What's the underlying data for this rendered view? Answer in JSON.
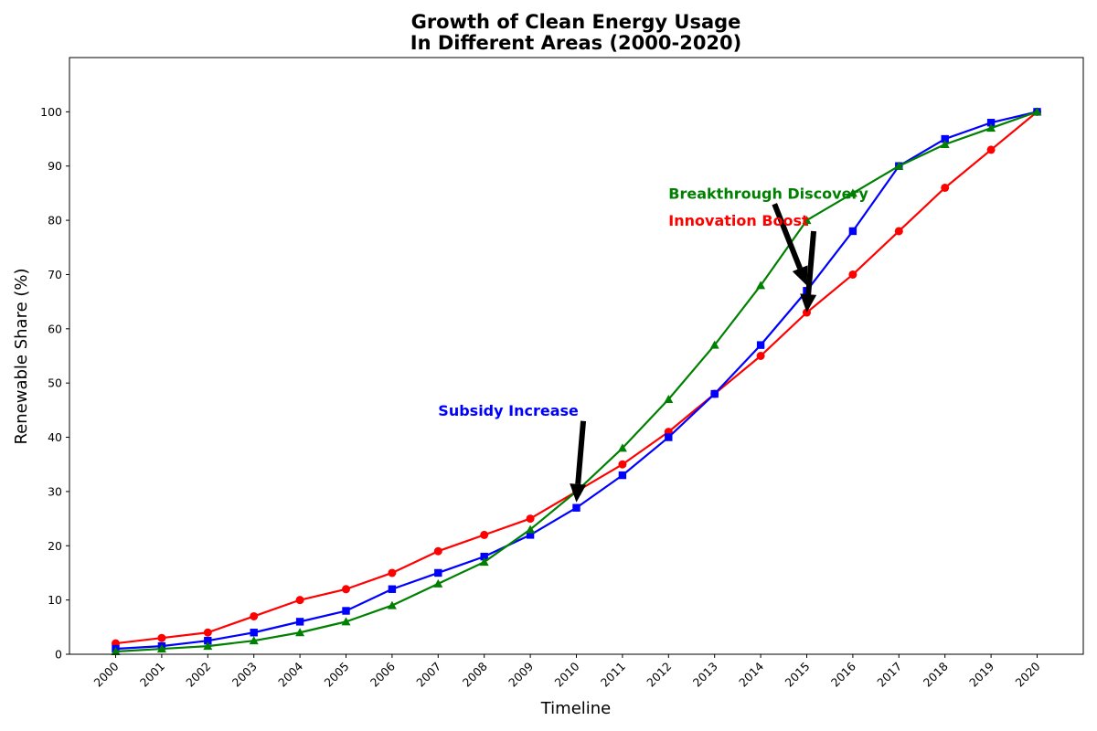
{
  "chart_data": {
    "type": "line",
    "title_lines": [
      "Growth of Clean Energy Usage",
      "In Different Areas (2000-2020)"
    ],
    "xlabel": "Timeline",
    "ylabel": "Renewable Share (%)",
    "categories": [
      "2000",
      "2001",
      "2002",
      "2003",
      "2004",
      "2005",
      "2006",
      "2007",
      "2008",
      "2009",
      "2010",
      "2011",
      "2012",
      "2013",
      "2014",
      "2015",
      "2016",
      "2017",
      "2018",
      "2019",
      "2020"
    ],
    "ylim": [
      0,
      110
    ],
    "yticks": [
      0,
      10,
      20,
      30,
      40,
      50,
      60,
      70,
      80,
      90,
      100
    ],
    "grid": false,
    "legend": "none",
    "series": [
      {
        "color": "#ff0000",
        "marker": "circle",
        "values": [
          2,
          3,
          4,
          7,
          10,
          12,
          15,
          19,
          22,
          25,
          30,
          35,
          41,
          48,
          55,
          63,
          70,
          78,
          86,
          93,
          100
        ]
      },
      {
        "color": "#0000ff",
        "marker": "square",
        "values": [
          1,
          1.5,
          2.5,
          4,
          6,
          8,
          12,
          15,
          18,
          22,
          27,
          33,
          40,
          48,
          57,
          67,
          78,
          90,
          95,
          98,
          100
        ]
      },
      {
        "color": "#008000",
        "marker": "triangle",
        "values": [
          0.5,
          1,
          1.5,
          2.5,
          4,
          6,
          9,
          13,
          17,
          23,
          30,
          38,
          47,
          57,
          68,
          80,
          85,
          90,
          94,
          97,
          100
        ]
      }
    ],
    "annotations": [
      {
        "text": "Subsidy Increase",
        "color": "#0000ff",
        "text_at": [
          "2007",
          45
        ],
        "arrow_from": [
          "2010.15",
          43
        ],
        "arrow_to": [
          "2010",
          28
        ]
      },
      {
        "text": "Breakthrough Discovery",
        "color": "#008000",
        "text_at": [
          "2012",
          85
        ],
        "arrow_from": [
          "2014.3",
          83
        ],
        "arrow_to": [
          "2015",
          68
        ]
      },
      {
        "text": "Innovation Boost",
        "color": "#ff0000",
        "text_at": [
          "2012",
          80
        ],
        "arrow_from": [
          "2015.15",
          78
        ],
        "arrow_to": [
          "2015",
          63
        ]
      }
    ]
  }
}
